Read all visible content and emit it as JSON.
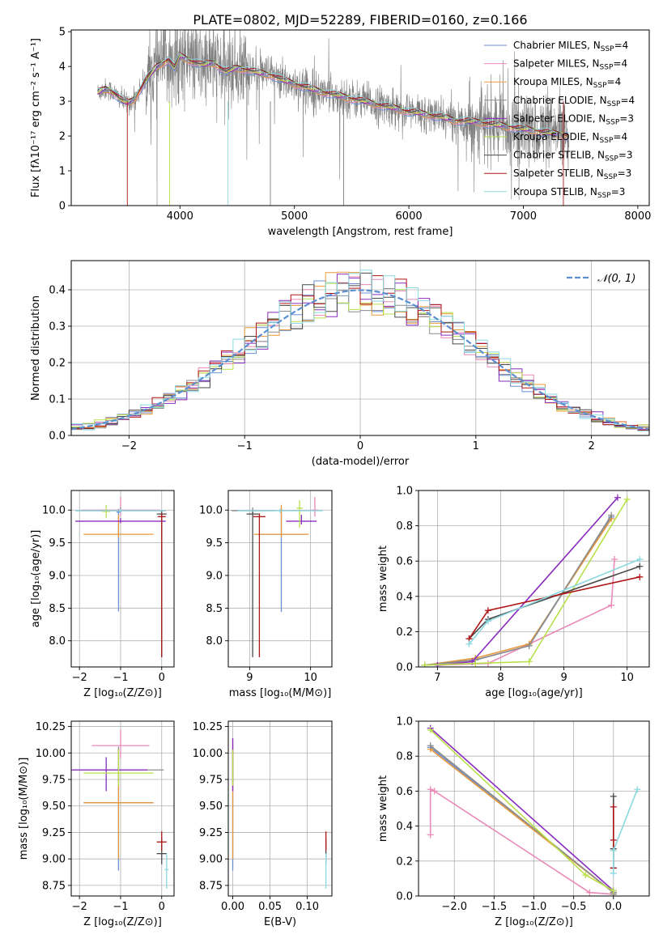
{
  "figure_title": "PLATE=0802, MJD=52289, FIBERID=0160, z=0.166",
  "colors": {
    "chabrier_miles": "#6b8fd6",
    "salpeter_miles": "#e98ab8",
    "kroupa_miles": "#e8993a",
    "chabrier_elodie": "#8c8c8c",
    "salpeter_elodie": "#8a2bbf",
    "kroupa_elodie": "#b9e04a",
    "chabrier_stelib": "#4a4a4a",
    "salpeter_stelib": "#b01515",
    "kroupa_stelib": "#8ad8e0",
    "data_spectrum": "#808080",
    "normal_curve": "#5b8fd0"
  },
  "chart_data": [
    {
      "id": "spectrum",
      "type": "line",
      "title": "PLATE=0802, MJD=52289, FIBERID=0160, z=0.166",
      "xlabel": "wavelength [Angstrom, rest frame]",
      "ylabel": "Flux [fλ10⁻¹⁷ erg cm⁻² s⁻¹ A⁻¹]",
      "xlim": [
        3050,
        8100
      ],
      "ylim": [
        0,
        5.05
      ],
      "xticks": [
        4000,
        5000,
        6000,
        7000,
        8000
      ],
      "yticks": [
        0,
        1,
        2,
        3,
        4,
        5
      ],
      "grid": false,
      "legend_position": "upper right",
      "legend": [
        {
          "label": "Chabrier MILES, N",
          "sub": "SSP",
          "suffix": "=4",
          "color_key": "chabrier_miles"
        },
        {
          "label": "Salpeter MILES, N",
          "sub": "SSP",
          "suffix": "=4",
          "color_key": "salpeter_miles"
        },
        {
          "label": "Kroupa MILES, N",
          "sub": "SSP",
          "suffix": "=4",
          "color_key": "kroupa_miles"
        },
        {
          "label": "Chabrier ELODIE, N",
          "sub": "SSP",
          "suffix": "=4",
          "color_key": "chabrier_elodie"
        },
        {
          "label": "Salpeter ELODIE, N",
          "sub": "SSP",
          "suffix": "=3",
          "color_key": "salpeter_elodie"
        },
        {
          "label": "Kroupa ELODIE, N",
          "sub": "SSP",
          "suffix": "=4",
          "color_key": "kroupa_elodie"
        },
        {
          "label": "Chabrier STELIB, N",
          "sub": "SSP",
          "suffix": "=3",
          "color_key": "chabrier_stelib"
        },
        {
          "label": "Salpeter STELIB, N",
          "sub": "SSP",
          "suffix": "=3",
          "color_key": "salpeter_stelib"
        },
        {
          "label": "Kroupa STELIB, N",
          "sub": "SSP",
          "suffix": "=3",
          "color_key": "kroupa_stelib"
        }
      ],
      "data_x_range": [
        3280,
        7400
      ],
      "model_curve": {
        "x": [
          3280,
          3350,
          3400,
          3450,
          3500,
          3550,
          3600,
          3700,
          3800,
          3900,
          3950,
          4000,
          4100,
          4200,
          4300,
          4400,
          4500,
          4600,
          4700,
          4800,
          4900,
          5000,
          5200,
          5400,
          5600,
          5800,
          6000,
          6200,
          6400,
          6600,
          6800,
          7000,
          7200,
          7400
        ],
        "y": [
          3.25,
          3.35,
          3.3,
          3.15,
          3.0,
          2.95,
          3.05,
          3.6,
          4.0,
          4.2,
          3.95,
          4.3,
          4.15,
          4.05,
          4.1,
          3.85,
          3.95,
          3.9,
          3.8,
          3.75,
          3.6,
          3.5,
          3.3,
          3.15,
          3.0,
          2.85,
          2.7,
          2.6,
          2.45,
          2.4,
          2.3,
          2.2,
          2.1,
          2.0
        ]
      },
      "data_noise_amplitude": 0.9
    },
    {
      "id": "residuals",
      "type": "histogram",
      "xlabel": "(data-model)/error",
      "ylabel": "Normed distribution",
      "xlim": [
        -2.5,
        2.5
      ],
      "ylim": [
        0,
        0.48
      ],
      "xticks": [
        -2,
        -1,
        0,
        1,
        2
      ],
      "yticks": [
        0.0,
        0.1,
        0.2,
        0.3,
        0.4
      ],
      "grid": true,
      "legend_position": "upper right",
      "legend": [
        {
          "label": "𝒩(0, 1)",
          "color_key": "normal_curve"
        }
      ],
      "bins": {
        "start": -2.5,
        "width": 0.1,
        "count": 50
      },
      "series_color_keys": [
        "chabrier_miles",
        "salpeter_miles",
        "kroupa_miles",
        "chabrier_elodie",
        "salpeter_elodie",
        "kroupa_elodie",
        "chabrier_stelib",
        "salpeter_stelib",
        "kroupa_stelib"
      ]
    },
    {
      "id": "age_vs_Z",
      "type": "errorbar",
      "xlabel": "Z [log₁₀(Z/Z⊙)]",
      "ylabel": "age  [log₁₀(age/yr)]",
      "xlim": [
        -2.2,
        0.3
      ],
      "ylim": [
        7.6,
        10.3
      ],
      "xticks": [
        -2,
        -1,
        0
      ],
      "yticks": [
        8.0,
        8.5,
        9.0,
        9.5,
        10.0
      ],
      "grid": true,
      "points": [
        {
          "color_key": "chabrier_miles",
          "x": -1.05,
          "y": 9.97,
          "xerr": 0.05,
          "yerr_low": 1.52,
          "yerr_high": 0.05
        },
        {
          "color_key": "salpeter_miles",
          "x": -1.0,
          "y": 10.0,
          "xerr": 0.95,
          "yerr_low": 0.1,
          "yerr_high": 0.2
        },
        {
          "color_key": "kroupa_miles",
          "x": -1.05,
          "y": 9.63,
          "xerr": 0.85,
          "yerr_low": 0.05,
          "yerr_high": 0.3
        },
        {
          "color_key": "chabrier_elodie",
          "x": -1.0,
          "y": 9.99,
          "xerr": 1.1,
          "yerr_low": 0.03,
          "yerr_high": 0.05
        },
        {
          "color_key": "salpeter_elodie",
          "x": -1.0,
          "y": 9.83,
          "xerr": 1.1,
          "yerr_low": 0.03,
          "yerr_high": 0.05
        },
        {
          "color_key": "kroupa_elodie",
          "x": -1.35,
          "y": 9.98,
          "xerr": 0.1,
          "yerr_low": 0.1,
          "yerr_high": 0.1
        },
        {
          "color_key": "chabrier_stelib",
          "x": 0.0,
          "y": 9.94,
          "xerr": 0.12,
          "yerr_low": 2.19,
          "yerr_high": 0.05
        },
        {
          "color_key": "salpeter_stelib",
          "x": 0.0,
          "y": 9.9,
          "xerr": 0.1,
          "yerr_low": 2.15,
          "yerr_high": 0.05
        },
        {
          "color_key": "kroupa_stelib",
          "x": -1.0,
          "y": 9.99,
          "xerr": 1.1,
          "yerr_low": 0.03,
          "yerr_high": 0.03
        }
      ]
    },
    {
      "id": "age_vs_mass",
      "type": "errorbar",
      "xlabel": "mass [log₁₀(M/M⊙)]",
      "ylabel": "",
      "xlim": [
        8.65,
        10.35
      ],
      "ylim": [
        7.6,
        10.3
      ],
      "xticks": [
        9,
        10
      ],
      "yticks": [
        8.0,
        8.5,
        9.0,
        9.5,
        10.0
      ],
      "grid": true,
      "points": [
        {
          "color_key": "chabrier_miles",
          "x": 9.52,
          "y": 9.63,
          "xerr": 0.4,
          "yerr_low": 1.19,
          "yerr_high": 0.4
        },
        {
          "color_key": "salpeter_miles",
          "x": 10.07,
          "y": 10.0,
          "xerr": 0.05,
          "yerr_low": 0.1,
          "yerr_high": 0.2
        },
        {
          "color_key": "kroupa_miles",
          "x": 9.52,
          "y": 9.63,
          "xerr": 0.45,
          "yerr_low": 0.05,
          "yerr_high": 0.45
        },
        {
          "color_key": "chabrier_elodie",
          "x": 9.05,
          "y": 9.99,
          "xerr": 0.35,
          "yerr_low": 0.05,
          "yerr_high": 0.05
        },
        {
          "color_key": "salpeter_elodie",
          "x": 9.85,
          "y": 9.83,
          "xerr": 0.25,
          "yerr_low": 0.05,
          "yerr_high": 0.1
        },
        {
          "color_key": "kroupa_elodie",
          "x": 9.82,
          "y": 10.03,
          "xerr": 0.05,
          "yerr_low": 0.3,
          "yerr_high": 0.12
        },
        {
          "color_key": "chabrier_stelib",
          "x": 9.05,
          "y": 9.94,
          "xerr": 0.1,
          "yerr_low": 2.19,
          "yerr_high": 0.05
        },
        {
          "color_key": "salpeter_stelib",
          "x": 9.16,
          "y": 9.9,
          "xerr": 0.1,
          "yerr_low": 2.15,
          "yerr_high": 0.05
        },
        {
          "color_key": "kroupa_stelib",
          "x": 9.5,
          "y": 9.99,
          "xerr": 0.7,
          "yerr_low": 0.03,
          "yerr_high": 0.03
        }
      ]
    },
    {
      "id": "weight_vs_age",
      "type": "line",
      "xlabel": "age  [log₁₀(age/yr)]",
      "ylabel": "mass weight",
      "xlim": [
        6.7,
        10.35
      ],
      "ylim": [
        0,
        1.0
      ],
      "xticks": [
        7,
        8,
        9,
        10
      ],
      "yticks": [
        0.0,
        0.2,
        0.4,
        0.6,
        0.8,
        1.0
      ],
      "grid": true,
      "series": [
        {
          "color_key": "chabrier_miles",
          "x": [
            6.8,
            7.6,
            8.45,
            9.75
          ],
          "y": [
            0.01,
            0.04,
            0.12,
            0.85
          ]
        },
        {
          "color_key": "salpeter_miles",
          "x": [
            7.0,
            7.8,
            9.75,
            9.8
          ],
          "y": [
            0.01,
            0.02,
            0.35,
            0.61
          ]
        },
        {
          "color_key": "kroupa_miles",
          "x": [
            6.8,
            7.6,
            8.45,
            9.75
          ],
          "y": [
            0.01,
            0.05,
            0.13,
            0.84
          ]
        },
        {
          "color_key": "chabrier_elodie",
          "x": [
            6.8,
            7.6,
            8.45,
            9.75
          ],
          "y": [
            0.01,
            0.04,
            0.12,
            0.86
          ]
        },
        {
          "color_key": "salpeter_elodie",
          "x": [
            7.0,
            7.55,
            9.85
          ],
          "y": [
            0.01,
            0.03,
            0.96
          ]
        },
        {
          "color_key": "kroupa_elodie",
          "x": [
            6.8,
            7.6,
            8.45,
            10.0
          ],
          "y": [
            0.01,
            0.02,
            0.03,
            0.95
          ]
        },
        {
          "color_key": "chabrier_stelib",
          "x": [
            7.5,
            7.8,
            10.2
          ],
          "y": [
            0.16,
            0.27,
            0.57
          ]
        },
        {
          "color_key": "salpeter_stelib",
          "x": [
            7.5,
            7.8,
            10.2
          ],
          "y": [
            0.16,
            0.32,
            0.51
          ]
        },
        {
          "color_key": "kroupa_stelib",
          "x": [
            7.5,
            7.8,
            10.2
          ],
          "y": [
            0.13,
            0.26,
            0.61
          ]
        }
      ]
    },
    {
      "id": "mass_vs_Z",
      "type": "errorbar",
      "xlabel": "Z [log₁₀(Z/Z⊙)]",
      "ylabel": "mass [log₁₀(M/M⊙)]",
      "xlim": [
        -2.2,
        0.3
      ],
      "ylim": [
        8.65,
        10.3
      ],
      "xticks": [
        -2,
        -1,
        0
      ],
      "yticks": [
        8.75,
        9.0,
        9.25,
        9.5,
        9.75,
        10.0,
        10.25
      ],
      "grid": true,
      "points": [
        {
          "color_key": "chabrier_miles",
          "x": -1.05,
          "y": 9.53,
          "xerr": 0.85,
          "yerr_low": 0.64,
          "yerr_high": 0.5
        },
        {
          "color_key": "salpeter_miles",
          "x": -1.0,
          "y": 10.07,
          "xerr": 0.7,
          "yerr_low": 0.12,
          "yerr_high": 0.15
        },
        {
          "color_key": "kroupa_miles",
          "x": -1.05,
          "y": 9.53,
          "xerr": 0.85,
          "yerr_low": 0.53,
          "yerr_high": 0.5
        },
        {
          "color_key": "chabrier_elodie",
          "x": -1.05,
          "y": 9.84,
          "xerr": 1.1,
          "yerr_low": 0.12,
          "yerr_high": 0.22
        },
        {
          "color_key": "salpeter_elodie",
          "x": -1.35,
          "y": 9.84,
          "xerr": 1.0,
          "yerr_low": 0.2,
          "yerr_high": 0.12
        },
        {
          "color_key": "kroupa_elodie",
          "x": -1.05,
          "y": 9.81,
          "xerr": 0.85,
          "yerr_low": 0.12,
          "yerr_high": 0.22
        },
        {
          "color_key": "chabrier_stelib",
          "x": 0.0,
          "y": 9.05,
          "xerr": 0.12,
          "yerr_low": 0.1,
          "yerr_high": 0.15
        },
        {
          "color_key": "salpeter_stelib",
          "x": 0.0,
          "y": 9.16,
          "xerr": 0.12,
          "yerr_low": 0.08,
          "yerr_high": 0.1
        },
        {
          "color_key": "kroupa_stelib",
          "x": 0.12,
          "y": 8.9,
          "xerr": 0.05,
          "yerr_low": 0.18,
          "yerr_high": 0.15
        }
      ]
    },
    {
      "id": "mass_vs_ebv",
      "type": "errorbar",
      "xlabel": "E(B-V)",
      "ylabel": "",
      "xlim": [
        -0.006,
        0.133
      ],
      "ylim": [
        8.65,
        10.3
      ],
      "xticks": [
        0.0,
        0.05,
        0.1
      ],
      "yticks": [
        8.75,
        9.0,
        9.25,
        9.5,
        9.75,
        10.0,
        10.25
      ],
      "grid": true,
      "points": [
        {
          "color_key": "chabrier_miles",
          "x": 0.0,
          "y": 9.53,
          "xerr": 0.0,
          "yerr_low": 0.64,
          "yerr_high": 0.5
        },
        {
          "color_key": "salpeter_miles",
          "x": 0.0,
          "y": 10.07,
          "xerr": 0.0,
          "yerr_low": 0.12,
          "yerr_high": 0.05
        },
        {
          "color_key": "kroupa_miles",
          "x": 0.0,
          "y": 9.53,
          "xerr": 0.0,
          "yerr_low": 0.53,
          "yerr_high": 0.5
        },
        {
          "color_key": "chabrier_elodie",
          "x": 0.0,
          "y": 9.84,
          "xerr": 0.0,
          "yerr_low": 0.12,
          "yerr_high": 0.22
        },
        {
          "color_key": "salpeter_elodie",
          "x": 0.0,
          "y": 9.84,
          "xerr": 0.0,
          "yerr_low": 0.2,
          "yerr_high": 0.3
        },
        {
          "color_key": "kroupa_elodie",
          "x": 0.0,
          "y": 9.81,
          "xerr": 0.0,
          "yerr_low": 0.12,
          "yerr_high": 0.22
        },
        {
          "color_key": "chabrier_stelib",
          "x": 0.125,
          "y": 9.05,
          "xerr": 0.0,
          "yerr_low": 0.1,
          "yerr_high": 0.15
        },
        {
          "color_key": "salpeter_stelib",
          "x": 0.125,
          "y": 9.16,
          "xerr": 0.0,
          "yerr_low": 0.08,
          "yerr_high": 0.1
        },
        {
          "color_key": "kroupa_stelib",
          "x": 0.125,
          "y": 8.9,
          "xerr": 0.0,
          "yerr_low": 0.18,
          "yerr_high": 0.15
        }
      ]
    },
    {
      "id": "weight_vs_Z",
      "type": "line",
      "xlabel": "Z [log₁₀(Z/Z⊙)]",
      "ylabel": "mass weight",
      "xlim": [
        -2.45,
        0.45
      ],
      "ylim": [
        0,
        1.0
      ],
      "xticks": [
        -2.0,
        -1.5,
        -1.0,
        -0.5,
        0.0
      ],
      "yticks": [
        0.0,
        0.2,
        0.4,
        0.6,
        0.8,
        1.0
      ],
      "grid": true,
      "series": [
        {
          "color_key": "chabrier_miles",
          "x": [
            -2.3,
            0.0,
            0.0
          ],
          "y": [
            0.85,
            0.02,
            0.01
          ]
        },
        {
          "color_key": "salpeter_miles",
          "x": [
            -2.3,
            -2.3,
            -2.25,
            -0.3,
            0.0
          ],
          "y": [
            0.35,
            0.61,
            0.6,
            0.02,
            0.01
          ]
        },
        {
          "color_key": "kroupa_miles",
          "x": [
            -2.3,
            0.0,
            0.0
          ],
          "y": [
            0.84,
            0.02,
            0.01
          ]
        },
        {
          "color_key": "chabrier_elodie",
          "x": [
            -2.3,
            0.0,
            0.0
          ],
          "y": [
            0.86,
            0.02,
            0.01
          ]
        },
        {
          "color_key": "salpeter_elodie",
          "x": [
            -2.3,
            0.0
          ],
          "y": [
            0.96,
            0.03
          ]
        },
        {
          "color_key": "kroupa_elodie",
          "x": [
            -2.3,
            -0.35,
            0.0
          ],
          "y": [
            0.95,
            0.12,
            0.03
          ]
        },
        {
          "color_key": "chabrier_stelib",
          "x": [
            0.0,
            0.0,
            0.0
          ],
          "y": [
            0.16,
            0.27,
            0.57
          ]
        },
        {
          "color_key": "salpeter_stelib",
          "x": [
            0.0,
            0.0,
            0.0
          ],
          "y": [
            0.16,
            0.32,
            0.51
          ]
        },
        {
          "color_key": "kroupa_stelib",
          "x": [
            0.0,
            0.0,
            0.3
          ],
          "y": [
            0.13,
            0.26,
            0.61
          ]
        }
      ]
    }
  ]
}
